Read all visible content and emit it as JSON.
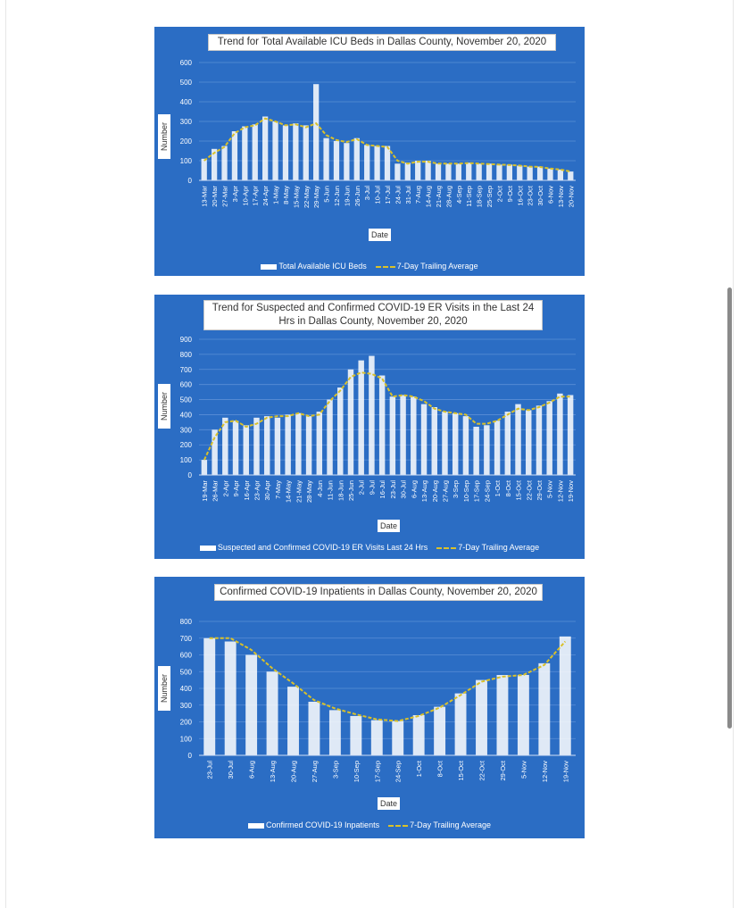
{
  "chart_data": [
    {
      "type": "bar",
      "title": "Trend for Total Available ICU Beds in Dallas County, November 20, 2020",
      "xlabel": "Date",
      "ylabel": "Number",
      "ylim": [
        0,
        600
      ],
      "yticks": [
        0,
        100,
        200,
        300,
        400,
        500,
        600
      ],
      "xticks": [
        "13-Mar",
        "20-Mar",
        "27-Mar",
        "3-Apr",
        "10-Apr",
        "17-Apr",
        "24-Apr",
        "1-May",
        "8-May",
        "15-May",
        "22-May",
        "29-May",
        "5-Jun",
        "12-Jun",
        "19-Jun",
        "26-Jun",
        "3-Jul",
        "10-Jul",
        "17-Jul",
        "24-Jul",
        "31-Jul",
        "7-Aug",
        "14-Aug",
        "21-Aug",
        "28-Aug",
        "4-Sep",
        "11-Sep",
        "18-Sep",
        "25-Sep",
        "2-Oct",
        "9-Oct",
        "16-Oct",
        "23-Oct",
        "30-Oct",
        "6-Nov",
        "13-Nov",
        "20-Nov"
      ],
      "grid": true,
      "legend_position": "bottom",
      "series": [
        {
          "name": "Total Available ICU Beds",
          "kind": "bar",
          "color": "#ffffff",
          "values": [
            110,
            160,
            175,
            250,
            275,
            285,
            325,
            300,
            280,
            290,
            280,
            490,
            215,
            200,
            190,
            215,
            180,
            175,
            175,
            85,
            90,
            100,
            100,
            85,
            85,
            85,
            90,
            85,
            85,
            80,
            80,
            75,
            70,
            70,
            60,
            55,
            45
          ]
        },
        {
          "name": "7-Day Trailing Average",
          "kind": "line",
          "color": "#d9c12a",
          "values": [
            100,
            140,
            170,
            240,
            270,
            280,
            315,
            300,
            280,
            285,
            270,
            290,
            230,
            205,
            195,
            210,
            180,
            175,
            170,
            100,
            85,
            95,
            95,
            85,
            85,
            85,
            88,
            85,
            83,
            80,
            78,
            75,
            70,
            68,
            60,
            55,
            45
          ]
        }
      ]
    },
    {
      "type": "bar",
      "title": "Trend for Suspected and Confirmed COVID-19 ER Visits in the Last 24 Hrs in Dallas County, November 20, 2020",
      "xlabel": "Date",
      "ylabel": "Number",
      "ylim": [
        0,
        900
      ],
      "yticks": [
        0,
        100,
        200,
        300,
        400,
        500,
        600,
        700,
        800,
        900
      ],
      "xticks": [
        "19-Mar",
        "26-Mar",
        "2-Apr",
        "9-Apr",
        "16-Apr",
        "23-Apr",
        "30-Apr",
        "7-May",
        "14-May",
        "21-May",
        "28-May",
        "4-Jun",
        "11-Jun",
        "18-Jun",
        "25-Jun",
        "2-Jul",
        "9-Jul",
        "16-Jul",
        "23-Jul",
        "30-Jul",
        "6-Aug",
        "13-Aug",
        "20-Aug",
        "27-Aug",
        "3-Sep",
        "10-Sep",
        "17-Sep",
        "24-Sep",
        "1-Oct",
        "8-Oct",
        "15-Oct",
        "22-Oct",
        "29-Oct",
        "5-Nov",
        "12-Nov",
        "19-Nov"
      ],
      "grid": true,
      "legend_position": "bottom",
      "series": [
        {
          "name": "Suspected and Confirmed COVID-19 ER Visits Last 24 Hrs",
          "kind": "bar",
          "color": "#ffffff",
          "values": [
            100,
            300,
            380,
            360,
            330,
            380,
            390,
            380,
            400,
            410,
            390,
            420,
            500,
            580,
            700,
            760,
            790,
            660,
            520,
            530,
            520,
            470,
            450,
            420,
            410,
            390,
            320,
            330,
            360,
            420,
            470,
            430,
            460,
            490,
            540,
            530
          ]
        },
        {
          "name": "7-Day Trailing Average",
          "kind": "line",
          "color": "#d9c12a",
          "values": [
            100,
            250,
            350,
            360,
            320,
            340,
            380,
            390,
            390,
            410,
            390,
            400,
            490,
            560,
            650,
            680,
            670,
            640,
            520,
            530,
            520,
            490,
            440,
            420,
            410,
            400,
            340,
            340,
            360,
            400,
            440,
            430,
            450,
            480,
            520,
            520
          ]
        }
      ]
    },
    {
      "type": "bar",
      "title": "Confirmed COVID-19 Inpatients in Dallas County, November 20, 2020",
      "xlabel": "Date",
      "ylabel": "Number",
      "ylim": [
        0,
        800
      ],
      "yticks": [
        0,
        100,
        200,
        300,
        400,
        500,
        600,
        700,
        800
      ],
      "xticks": [
        "23-Jul",
        "30-Jul",
        "6-Aug",
        "13-Aug",
        "20-Aug",
        "27-Aug",
        "3-Sep",
        "10-Sep",
        "17-Sep",
        "24-Sep",
        "1-Oct",
        "8-Oct",
        "15-Oct",
        "22-Oct",
        "29-Oct",
        "5-Nov",
        "12-Nov",
        "19-Nov"
      ],
      "grid": true,
      "legend_position": "bottom",
      "series": [
        {
          "name": "Confirmed COVID-19 Inpatients",
          "kind": "bar",
          "color": "#ffffff",
          "values": [
            700,
            680,
            600,
            500,
            410,
            320,
            270,
            235,
            210,
            205,
            240,
            290,
            370,
            450,
            480,
            480,
            550,
            710
          ]
        },
        {
          "name": "7-Day Trailing Average",
          "kind": "line",
          "color": "#d9c12a",
          "values": [
            700,
            700,
            630,
            520,
            430,
            330,
            280,
            245,
            215,
            205,
            235,
            285,
            360,
            440,
            470,
            480,
            540,
            680
          ]
        }
      ]
    }
  ]
}
